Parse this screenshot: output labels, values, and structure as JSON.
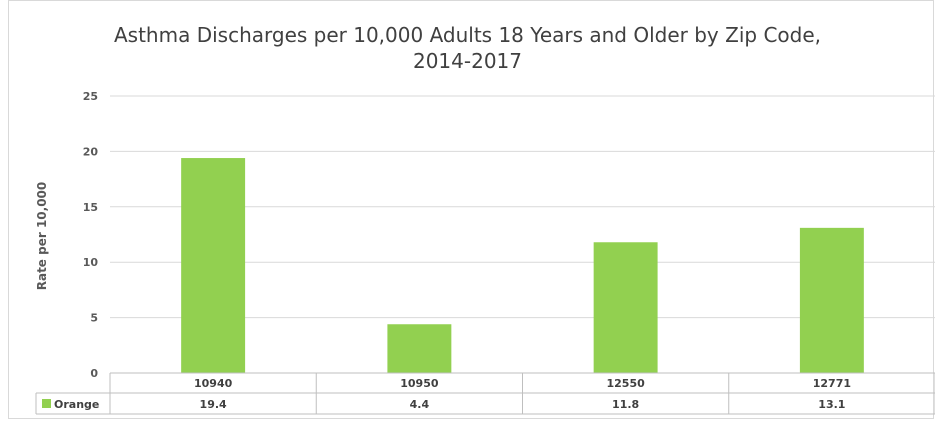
{
  "chart_data": {
    "type": "bar",
    "title_lines": [
      "Asthma Discharges per 10,000 Adults 18 Years and Older by Zip Code,",
      "2014-2017"
    ],
    "xlabel": "",
    "ylabel": "Rate per 10,000",
    "ylim": [
      0,
      25
    ],
    "yticks": [
      0,
      5,
      10,
      15,
      20,
      25
    ],
    "grid": true,
    "categories": [
      "10940",
      "10950",
      "12550",
      "12771"
    ],
    "series": [
      {
        "name": "Orange",
        "color": "#92d050",
        "values": [
          19.4,
          4.4,
          11.8,
          13.1
        ]
      }
    ],
    "data_table": {
      "row_label": "Orange",
      "values_text": [
        "19.4",
        "4.4",
        "11.8",
        "13.1"
      ]
    }
  }
}
